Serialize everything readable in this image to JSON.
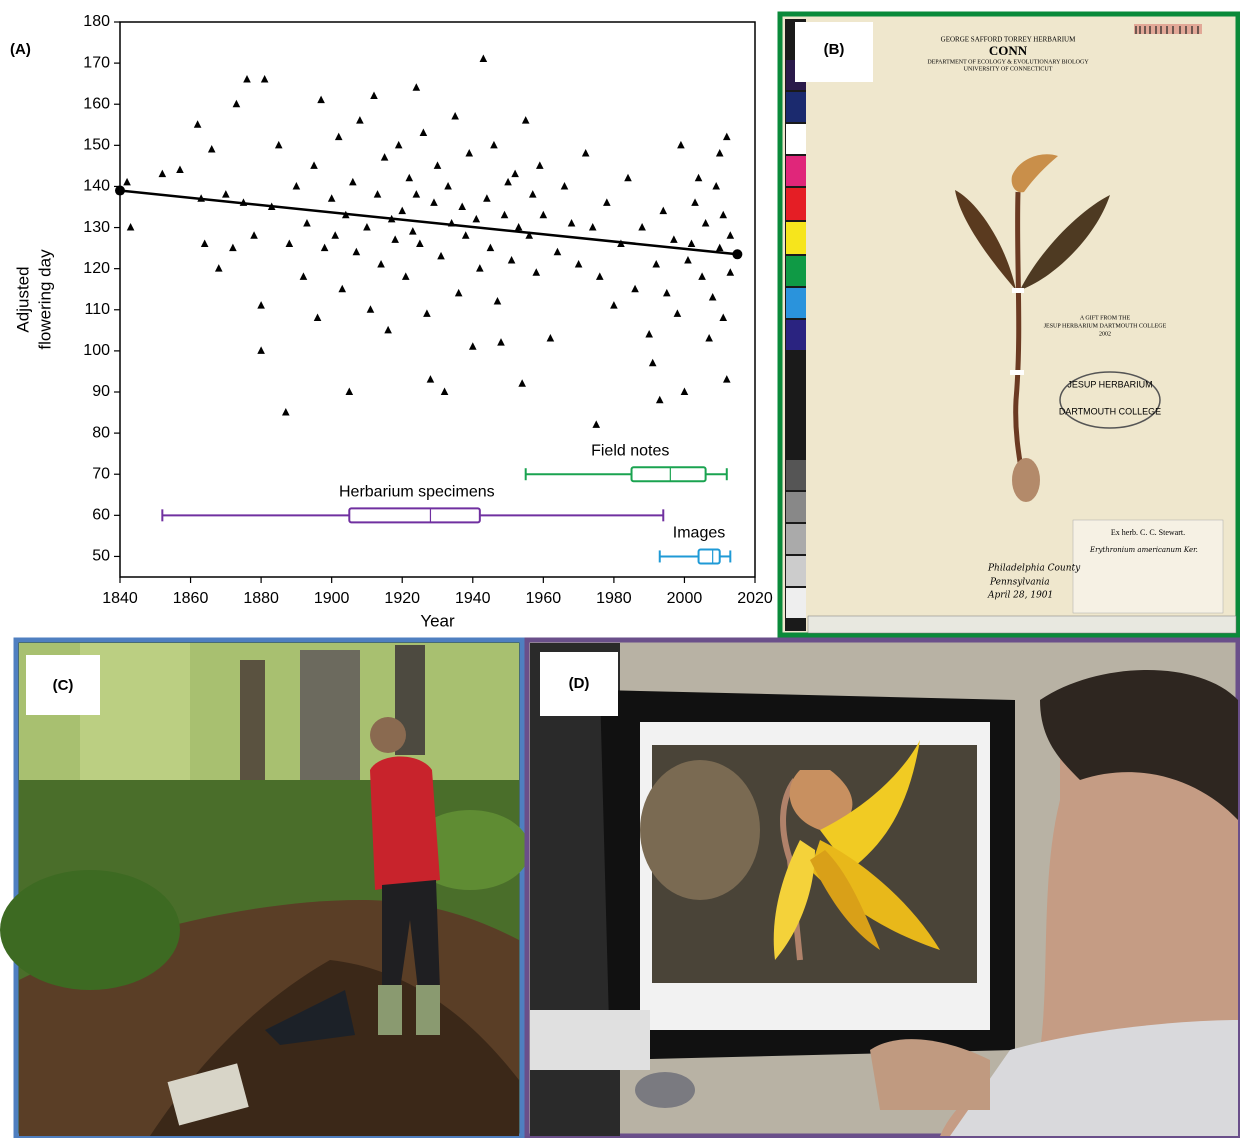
{
  "chart_data": {
    "type": "scatter",
    "xlabel": "Year",
    "ylabel_lines": [
      "Adjusted",
      "flowering day"
    ],
    "xlim": [
      1840,
      2020
    ],
    "ylim": [
      45,
      180
    ],
    "xticks": [
      1840,
      1860,
      1880,
      1900,
      1920,
      1940,
      1960,
      1980,
      2000,
      2020
    ],
    "yticks": [
      50,
      60,
      70,
      80,
      90,
      100,
      110,
      120,
      130,
      140,
      150,
      160,
      170,
      180
    ],
    "grid": false,
    "series": [
      {
        "color": "#000000",
        "marker": "triangle",
        "x": [
          1842,
          1843,
          1852,
          1857,
          1862,
          1863,
          1864,
          1866,
          1868,
          1870,
          1872,
          1873,
          1875,
          1876,
          1878,
          1880,
          1880,
          1881,
          1883,
          1885,
          1887,
          1888,
          1890,
          1892,
          1893,
          1895,
          1896,
          1897,
          1898,
          1900,
          1901,
          1902,
          1903,
          1904,
          1905,
          1906,
          1907,
          1908,
          1910,
          1911,
          1912,
          1913,
          1914,
          1915,
          1916,
          1917,
          1918,
          1919,
          1920,
          1921,
          1922,
          1923,
          1924,
          1924,
          1925,
          1926,
          1927,
          1928,
          1929,
          1930,
          1931,
          1932,
          1933,
          1934,
          1935,
          1936,
          1937,
          1938,
          1939,
          1940,
          1941,
          1942,
          1943,
          1944,
          1945,
          1946,
          1947,
          1948,
          1949,
          1950,
          1951,
          1952,
          1953,
          1954,
          1955,
          1956,
          1957,
          1958,
          1959,
          1960,
          1962,
          1964,
          1966,
          1968,
          1970,
          1972,
          1974,
          1975,
          1976,
          1978,
          1980,
          1982,
          1984,
          1986,
          1988,
          1990,
          1991,
          1992,
          1993,
          1994,
          1995,
          1997,
          1999,
          2000,
          2001,
          2003,
          2005,
          2006,
          2008,
          2009,
          2010,
          2010,
          2011,
          2011,
          2012,
          2012,
          2013,
          2013,
          1998,
          2004,
          2007,
          2002
        ],
        "values": [
          141,
          130,
          143,
          144,
          155,
          137,
          126,
          149,
          120,
          138,
          125,
          160,
          136,
          166,
          128,
          111,
          100,
          166,
          135,
          150,
          85,
          126,
          140,
          118,
          131,
          145,
          108,
          161,
          125,
          137,
          128,
          152,
          115,
          133,
          90,
          141,
          124,
          156,
          130,
          110,
          162,
          138,
          121,
          147,
          105,
          132,
          127,
          150,
          134,
          118,
          142,
          129,
          164,
          138,
          126,
          153,
          109,
          93,
          136,
          145,
          123,
          90,
          140,
          131,
          157,
          114,
          135,
          128,
          148,
          101,
          132,
          120,
          171,
          137,
          125,
          150,
          112,
          102,
          133,
          141,
          122,
          143,
          130,
          92,
          156,
          128,
          138,
          119,
          145,
          133,
          103,
          124,
          140,
          131,
          121,
          148,
          130,
          82,
          118,
          136,
          111,
          126,
          142,
          115,
          130,
          104,
          97,
          121,
          88,
          134,
          114,
          127,
          150,
          90,
          122,
          136,
          118,
          131,
          113,
          140,
          125,
          148,
          108,
          133,
          93,
          152,
          119,
          128,
          109,
          142,
          103,
          126
        ]
      }
    ],
    "trend": {
      "color": "#000000",
      "x": [
        1840,
        2015
      ],
      "values": [
        139,
        123.5
      ]
    },
    "boxes": [
      {
        "label": "Field notes",
        "color": "#1aa350",
        "y": 70,
        "whislo": 1955,
        "q1": 1985,
        "med": 1996,
        "q3": 2006,
        "whishi": 2012
      },
      {
        "label": "Herbarium specimens",
        "color": "#7030a0",
        "y": 60,
        "whislo": 1852,
        "q1": 1905,
        "med": 1928,
        "q3": 1942,
        "whishi": 1994
      },
      {
        "label": "Images",
        "color": "#1f9ad6",
        "y": 50,
        "whislo": 1993,
        "q1": 2004,
        "med": 2008,
        "q3": 2010,
        "whishi": 2013
      }
    ],
    "panel_label": "(A)"
  },
  "panels": {
    "b": {
      "label": "(B)",
      "header": [
        "GEORGE SAFFORD TORREY HERBARIUM",
        "CONN",
        "DEPARTMENT OF ECOLOGY & EVOLUTIONARY BIOLOGY",
        "UNIVERSITY OF CONNECTICUT"
      ],
      "gift": [
        "A GIFT FROM THE",
        "JESUP HERBARIUM DARTMOUTH COLLEGE",
        "2002"
      ],
      "stamp": [
        "JESUP HERBARIUM",
        "DARTMOUTH COLLEGE"
      ],
      "label_title": "Ex herb. C. C. Stewart.",
      "label_species": "Erythronium americanum Ker.",
      "handwritten": [
        "Philadelphia County",
        "Pennsylvania",
        "April 28, 1901"
      ]
    },
    "c": {
      "label": "(C)"
    },
    "d": {
      "label": "(D)"
    }
  }
}
